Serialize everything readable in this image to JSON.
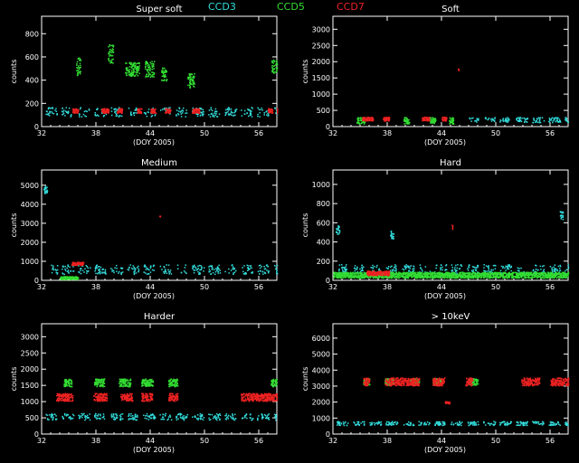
{
  "legend": [
    {
      "name": "CCD3",
      "color": "#33dddd"
    },
    {
      "name": "CCD5",
      "color": "#33dd33"
    },
    {
      "name": "CCD7",
      "color": "#ee2222"
    }
  ],
  "colors": {
    "background": "#000000",
    "axes": "#ffffff",
    "text": "#ffffff"
  },
  "chart_data": [
    {
      "type": "scatter",
      "title": "Super soft",
      "xlabel": "(DOY 2005)",
      "ylabel": "counts",
      "xlim": [
        32,
        58
      ],
      "ylim": [
        0,
        950
      ],
      "xticks": [
        32,
        38,
        44,
        50,
        56
      ],
      "yticks": [
        0,
        200,
        400,
        600,
        800
      ],
      "series": [
        {
          "name": "CCD3",
          "baseline": 130,
          "spread": 40,
          "segments": [
            [
              32,
              58
            ]
          ]
        },
        {
          "name": "CCD5",
          "segments": [
            [
              35.8,
              36.3,
              520,
              80
            ],
            [
              39.3,
              39.9,
              630,
              80
            ],
            [
              41.2,
              42.8,
              500,
              60
            ],
            [
              43.4,
              44.4,
              500,
              70
            ],
            [
              45.2,
              45.8,
              450,
              60
            ],
            [
              48.1,
              48.9,
              400,
              60
            ],
            [
              57.4,
              58,
              520,
              60
            ]
          ]
        },
        {
          "name": "CCD7",
          "baseline": 140,
          "spread": 20,
          "segments": [
            [
              35.4,
              36.0
            ],
            [
              38.6,
              39.4
            ],
            [
              40.3,
              40.9
            ],
            [
              42.5,
              43.0
            ],
            [
              44.0,
              44.6
            ],
            [
              45.6,
              46.2
            ],
            [
              48.6,
              49.4
            ],
            [
              57.0,
              57.5
            ],
            [
              58.0,
              58.0
            ]
          ]
        }
      ]
    },
    {
      "type": "scatter",
      "title": "Soft",
      "xlabel": "(DOY 2005)",
      "ylabel": "counts",
      "xlim": [
        32,
        58
      ],
      "ylim": [
        0,
        3400
      ],
      "xticks": [
        32,
        38,
        44,
        50,
        56
      ],
      "yticks": [
        0,
        500,
        1000,
        1500,
        2000,
        2500,
        3000
      ],
      "series": [
        {
          "name": "CCD3",
          "baseline": 220,
          "spread": 80,
          "segments": [
            [
              47,
              58
            ]
          ]
        },
        {
          "name": "CCD5",
          "baseline": 200,
          "spread": 100,
          "segments": [
            [
              34.6,
              35.5
            ],
            [
              39.8,
              40.4
            ],
            [
              42.7,
              43.3
            ],
            [
              44.8,
              45.3
            ]
          ]
        },
        {
          "name": "CCD7",
          "baseline": 250,
          "spread": 60,
          "segments": [
            [
              35.2,
              36.4
            ],
            [
              37.5,
              38.2
            ],
            [
              41.8,
              42.6
            ],
            [
              44.0,
              44.5
            ]
          ],
          "outlier": [
            45.8,
            1780
          ]
        }
      ]
    },
    {
      "type": "scatter",
      "title": "Medium",
      "xlabel": "(DOY 2005)",
      "ylabel": "counts",
      "xlim": [
        32,
        58
      ],
      "ylim": [
        0,
        5800
      ],
      "xticks": [
        32,
        38,
        44,
        50,
        56
      ],
      "yticks": [
        0,
        1000,
        2000,
        3000,
        4000,
        5000
      ],
      "series": [
        {
          "name": "CCD3",
          "baseline": 600,
          "spread": 250,
          "segments": [
            [
              33,
              58
            ]
          ],
          "peak": [
            32.2,
            4800
          ]
        },
        {
          "name": "CCD5",
          "baseline": 150,
          "spread": 80,
          "segments": [
            [
              34,
              36
            ]
          ]
        },
        {
          "name": "CCD7",
          "baseline": 900,
          "spread": 80,
          "segments": [
            [
              35.3,
              36.6
            ]
          ],
          "outlier": [
            45.0,
            3400
          ]
        }
      ]
    },
    {
      "type": "scatter",
      "title": "Hard",
      "xlabel": "(DOY 2005)",
      "ylabel": "counts",
      "xlim": [
        32,
        58
      ],
      "ylim": [
        0,
        1150
      ],
      "xticks": [
        32,
        38,
        44,
        50,
        56
      ],
      "yticks": [
        0,
        200,
        400,
        600,
        800,
        1000
      ],
      "series": [
        {
          "name": "CCD3",
          "baseline": 120,
          "spread": 50,
          "segments": [
            [
              32,
              58
            ]
          ],
          "peaks": [
            [
              32.3,
              530
            ],
            [
              38.3,
              480
            ],
            [
              57,
              680
            ]
          ]
        },
        {
          "name": "CCD5",
          "baseline": 60,
          "spread": 30,
          "segments": [
            [
              32,
              58
            ]
          ]
        },
        {
          "name": "CCD7",
          "baseline": 80,
          "spread": 25,
          "segments": [
            [
              35.7,
              38.2
            ]
          ],
          "outlier": [
            45.1,
            560
          ]
        }
      ]
    },
    {
      "type": "scatter",
      "title": "Harder",
      "xlabel": "(DOY 2005)",
      "ylabel": "counts",
      "xlim": [
        32,
        58
      ],
      "ylim": [
        0,
        3400
      ],
      "xticks": [
        32,
        38,
        44,
        50,
        56
      ],
      "yticks": [
        0,
        500,
        1000,
        1500,
        2000,
        2500,
        3000
      ],
      "series": [
        {
          "name": "CCD3",
          "baseline": 550,
          "spread": 100,
          "segments": [
            [
              32,
              58
            ]
          ]
        },
        {
          "name": "CCD5",
          "baseline": 1600,
          "spread": 120,
          "segments": [
            [
              34.4,
              35.3
            ],
            [
              37.8,
              38.9
            ],
            [
              40.5,
              41.8
            ],
            [
              43.0,
              44.3
            ],
            [
              46.0,
              47.0
            ],
            [
              57.3,
              58
            ]
          ]
        },
        {
          "name": "CCD7",
          "baseline": 1150,
          "spread": 120,
          "segments": [
            [
              33.6,
              35.4
            ],
            [
              37.7,
              39.2
            ],
            [
              40.7,
              42.0
            ],
            [
              43.0,
              44.2
            ],
            [
              46.0,
              47.0
            ],
            [
              54,
              58
            ]
          ]
        }
      ]
    },
    {
      "type": "scatter",
      "title": "> 10keV",
      "xlabel": "(DOY 2005)",
      "ylabel": "counts",
      "xlim": [
        32,
        58
      ],
      "ylim": [
        0,
        6900
      ],
      "xticks": [
        32,
        38,
        44,
        50,
        56
      ],
      "yticks": [
        0,
        1000,
        2000,
        3000,
        4000,
        5000,
        6000
      ],
      "series": [
        {
          "name": "CCD3",
          "baseline": 700,
          "spread": 120,
          "segments": [
            [
              32,
              58
            ]
          ]
        },
        {
          "name": "CCD5",
          "baseline": 3300,
          "spread": 200,
          "segments": [
            [
              35.3,
              36.0
            ],
            [
              37.7,
              38.7
            ],
            [
              40.5,
              41.5
            ],
            [
              43.0,
              44.0
            ],
            [
              47,
              48
            ]
          ]
        },
        {
          "name": "CCD7",
          "baseline": 3300,
          "spread": 250,
          "segments": [
            [
              35.3,
              36.0
            ],
            [
              37.7,
              41.5
            ],
            [
              43.0,
              44.3
            ],
            [
              46.6,
              47.4
            ],
            [
              52.8,
              54.8
            ],
            [
              56,
              58
            ]
          ],
          "mid": [
            [
              44.3,
              2000
            ]
          ]
        }
      ]
    }
  ]
}
